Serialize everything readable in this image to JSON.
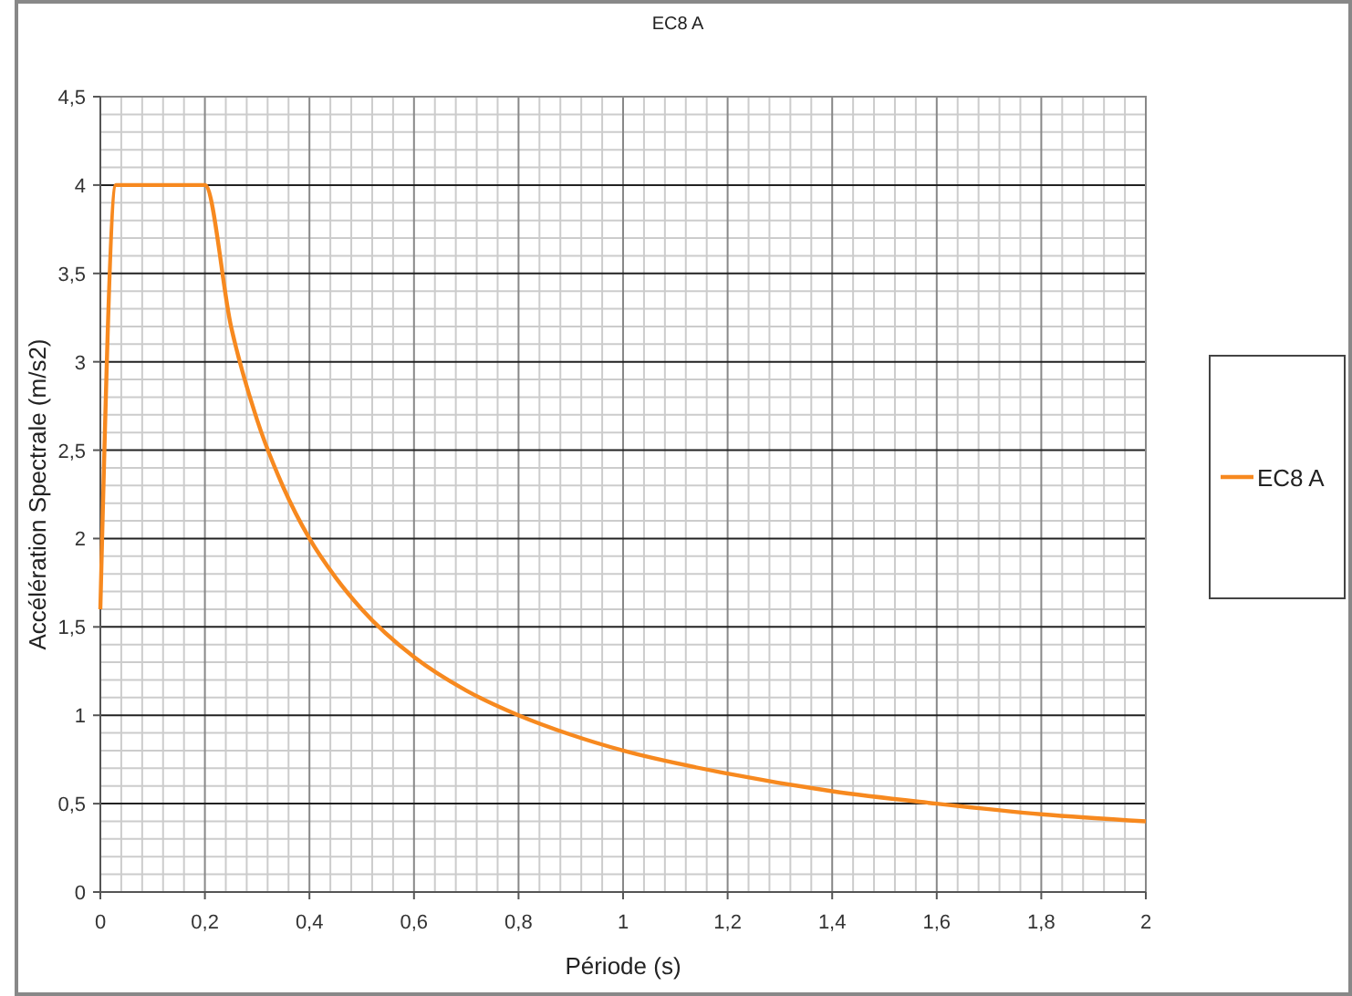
{
  "chart_data": {
    "type": "line",
    "title": "EC8 A",
    "xlabel": "Période (s)",
    "ylabel": "Accélération Spectrale (m/s2)",
    "xlim": [
      0,
      2
    ],
    "ylim": [
      0,
      4.5
    ],
    "xticks": [
      0,
      {
        "value": 0.2,
        "label": "0,2"
      },
      {
        "value": 0.4,
        "label": "0,4"
      },
      {
        "value": 0.6,
        "label": "0,6"
      },
      {
        "value": 0.8,
        "label": "0,8"
      },
      1,
      {
        "value": 1.2,
        "label": "1,2"
      },
      {
        "value": 1.4,
        "label": "1,4"
      },
      {
        "value": 1.6,
        "label": "1,6"
      },
      {
        "value": 1.8,
        "label": "1,8"
      },
      2
    ],
    "yticks": [
      0,
      {
        "value": 0.5,
        "label": "0,5"
      },
      1,
      {
        "value": 1.5,
        "label": "1,5"
      },
      2,
      {
        "value": 2.5,
        "label": "2,5"
      },
      3,
      {
        "value": 3.5,
        "label": "3,5"
      },
      4,
      {
        "value": 4.5,
        "label": "4,5"
      }
    ],
    "grid": true,
    "legend": "right",
    "marker": "none",
    "line_style": "solid",
    "series": [
      {
        "name": "EC8 A",
        "color": "#f7891f",
        "x": [
          0,
          0.03,
          0.2,
          0.25,
          0.3,
          0.35,
          0.4,
          0.45,
          0.5,
          0.6,
          0.7,
          0.8,
          0.9,
          1,
          1.2,
          1.4,
          1.6,
          1.8,
          2
        ],
        "values": [
          1.6,
          4,
          4,
          3.2,
          2.67,
          2.29,
          2,
          1.78,
          1.6,
          1.33,
          1.14,
          1,
          0.89,
          0.8,
          0.67,
          0.57,
          0.5,
          0.44,
          0.4
        ]
      }
    ]
  }
}
